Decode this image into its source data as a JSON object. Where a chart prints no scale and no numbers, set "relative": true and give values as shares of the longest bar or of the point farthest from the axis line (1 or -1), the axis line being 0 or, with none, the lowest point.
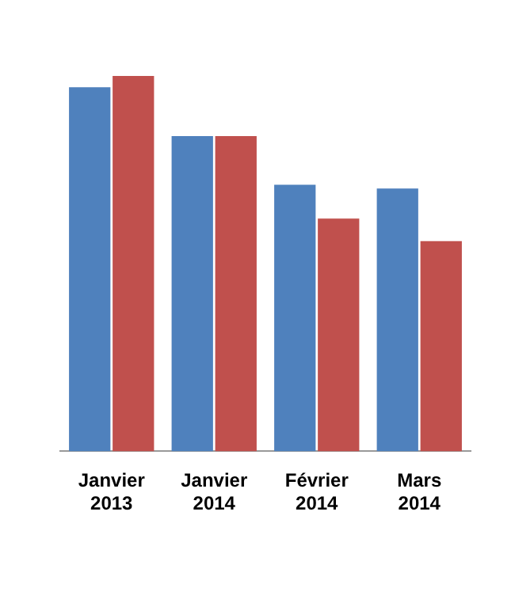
{
  "chart_data": {
    "type": "bar",
    "relative": true,
    "categories": [
      "Janvier 2013",
      "Janvier 2014",
      "Février 2014",
      "Mars 2014"
    ],
    "series": [
      {
        "color": "#4f81bd",
        "values": [
          0.97,
          0.84,
          0.71,
          0.7
        ]
      },
      {
        "color": "#c0504d",
        "values": [
          1,
          0.84,
          0.62,
          0.56
        ]
      }
    ],
    "grid": false,
    "legend": false
  }
}
